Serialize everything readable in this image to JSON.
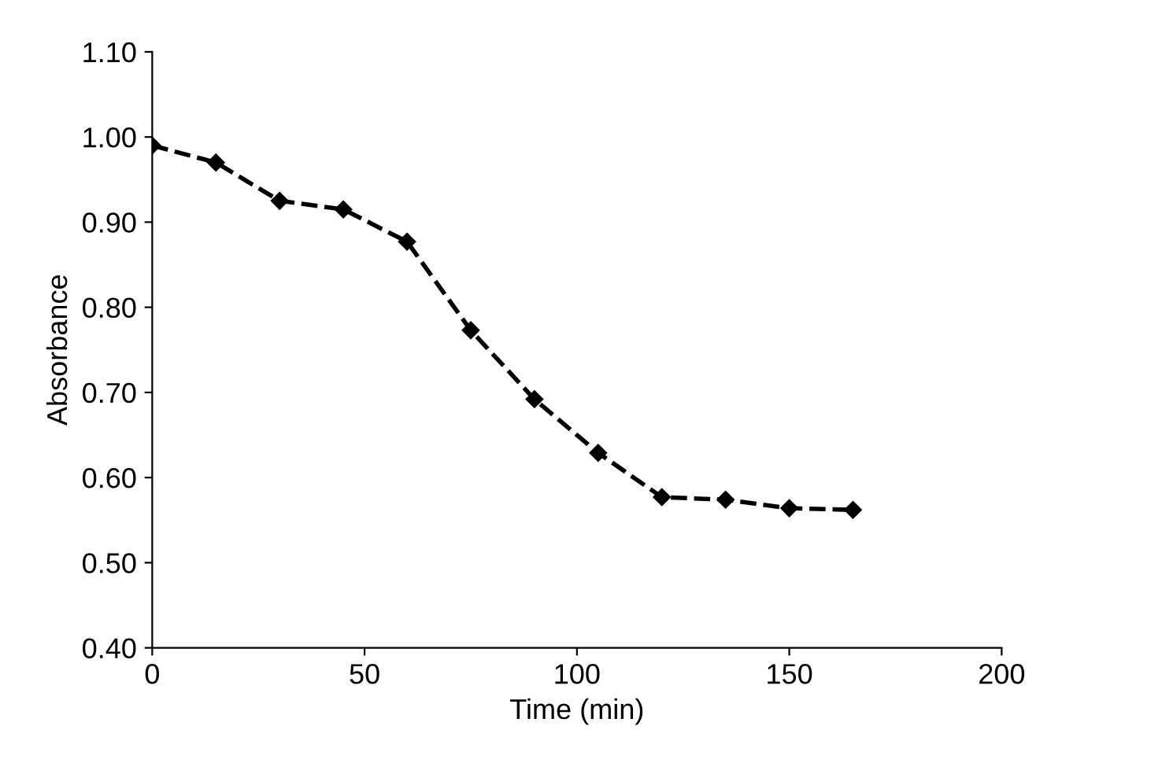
{
  "chart_data": {
    "type": "line",
    "xlabel": "Time (min)",
    "ylabel": "Absorbance",
    "x": [
      0,
      15,
      30,
      45,
      60,
      75,
      90,
      105,
      120,
      135,
      150,
      165
    ],
    "series": [
      {
        "color": "#000000",
        "values": [
          0.99,
          0.97,
          0.925,
          0.915,
          0.877,
          0.773,
          0.692,
          0.629,
          0.577,
          0.574,
          0.564,
          0.562
        ]
      }
    ],
    "xlim": [
      0,
      200
    ],
    "xticks": [
      0,
      50,
      100,
      150,
      200
    ],
    "ylim": [
      0.4,
      1.1
    ],
    "yticks": [
      {
        "value": 0.4,
        "label": "0.40"
      },
      {
        "value": 0.5,
        "label": "0.50"
      },
      {
        "value": 0.6,
        "label": "0.60"
      },
      {
        "value": 0.7,
        "label": "0.70"
      },
      {
        "value": 0.8,
        "label": "0.80"
      },
      {
        "value": 0.9,
        "label": "0.90"
      },
      {
        "value": 1.0,
        "label": "1.00"
      },
      {
        "value": 1.1,
        "label": "1.10"
      }
    ],
    "grid": false,
    "marker": "diamond",
    "line_style": "dashed"
  }
}
